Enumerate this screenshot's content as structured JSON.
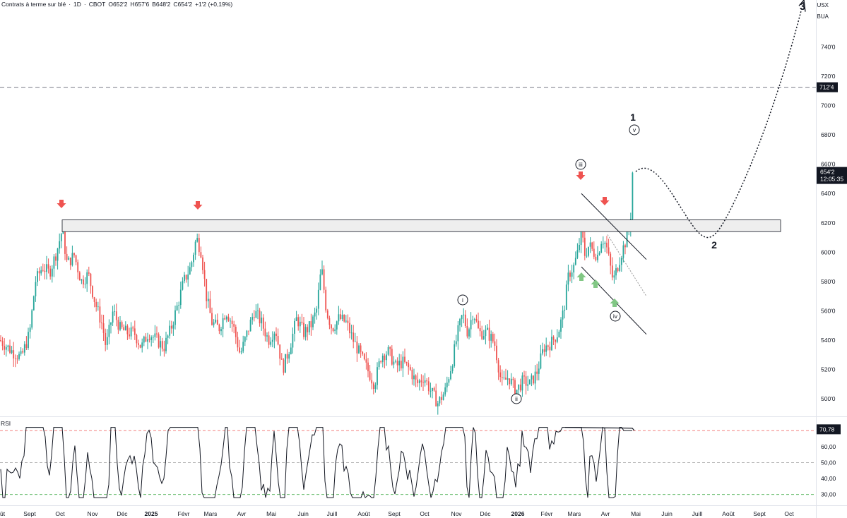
{
  "header": {
    "title": "Contrats à terme sur blé",
    "interval": "1D",
    "exchange": "CBOT",
    "open": "O652'2",
    "high": "H657'6",
    "low": "B648'2",
    "close": "C654'2",
    "change": "+1'2 (+0,19%)"
  },
  "scale_tags": {
    "currency": "USX",
    "account": "BUA"
  },
  "colors": {
    "up": "#26a69a",
    "down": "#ef5350",
    "rsi_line": "#131722",
    "overbought": "#ef5350",
    "oversold": "#4caf50",
    "mid_line": "#9e9e9e",
    "zone_fill": "#eeeeee",
    "arrow_down": "#ef5350",
    "arrow_up": "#81c784"
  },
  "chart_data": [
    {
      "type": "candlestick",
      "y_ticks": [
        "500'0",
        "520'0",
        "540'0",
        "560'0",
        "580'0",
        "600'0",
        "620'0",
        "640'0",
        "660'0",
        "680'0",
        "700'0",
        "720'0",
        "740'0"
      ],
      "ylim": [
        488,
        772
      ],
      "x_ticks": [
        "ût",
        "Sept",
        "Oct",
        "Nov",
        "Déc",
        "2025",
        "Févr",
        "Mars",
        "Avr",
        "Mai",
        "Juin",
        "Juill",
        "Août",
        "Sept",
        "Oct",
        "Nov",
        "Déc",
        "2026",
        "Févr",
        "Mars",
        "Avr",
        "Mai",
        "Juin",
        "Juill",
        "Août",
        "Sept",
        "Oct"
      ],
      "price_key_points": [
        [
          "ût",
          540
        ],
        [
          "Sept",
          545
        ],
        [
          "Oct",
          612
        ],
        [
          "Nov",
          575
        ],
        [
          "Déc",
          545
        ],
        [
          "2025",
          540
        ],
        [
          "Févr",
          610
        ],
        [
          "Mars",
          545
        ],
        [
          "Avr",
          560
        ],
        [
          "Mai",
          548
        ],
        [
          "Juin",
          545
        ],
        [
          "Juill",
          552
        ],
        [
          "Août",
          520
        ],
        [
          "Sept",
          530
        ],
        [
          "Oct",
          505
        ],
        [
          "Nov",
          552
        ],
        [
          "Déc",
          535
        ],
        [
          "2026",
          515
        ],
        [
          "Févr",
          550
        ],
        [
          "Mars",
          612
        ],
        [
          "Avr",
          575
        ],
        [
          "Mai",
          654.25
        ]
      ],
      "last_price": "654'2",
      "countdown": "12:05:35",
      "horizontal_level": "712'4",
      "level_value": 712.5,
      "resistance_zone": [
        614,
        622
      ],
      "wave_labels": {
        "i": "i",
        "ii": "ii",
        "iii": "iii",
        "iv": "iv",
        "v": "v",
        "w1": "1",
        "w2": "2",
        "w3": "3"
      },
      "projection": [
        [
          "Mai",
          655
        ],
        [
          "Juin",
          620
        ],
        [
          "Juill",
          615
        ],
        [
          "Août",
          650
        ],
        [
          "Sept",
          720
        ],
        [
          "Oct",
          770
        ]
      ]
    },
    {
      "type": "line",
      "title": "RSI",
      "y_ticks": [
        "30,00",
        "40,00",
        "50,00",
        "60,00"
      ],
      "ylim": [
        25,
        78
      ],
      "overbought": 70,
      "middle": 50,
      "oversold": 30,
      "last_value": "70,78"
    }
  ]
}
